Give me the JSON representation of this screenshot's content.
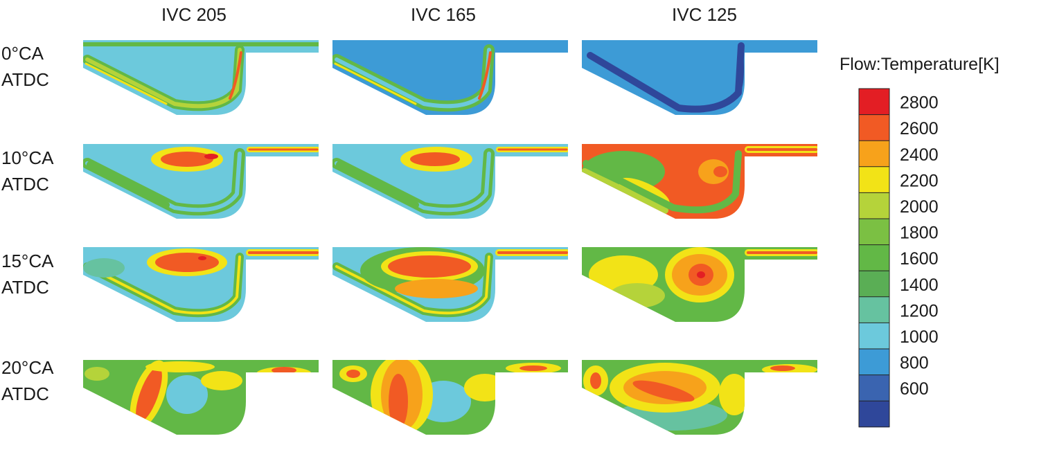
{
  "columns": [
    "IVC 205",
    "IVC 165",
    "IVC 125"
  ],
  "rows": [
    {
      "line1": "0°CA",
      "line2": "ATDC"
    },
    {
      "line1": "10°CA",
      "line2": "ATDC"
    },
    {
      "line1": "15°CA",
      "line2": "ATDC"
    },
    {
      "line1": "20°CA",
      "line2": "ATDC"
    }
  ],
  "legend": {
    "title": "Flow:Temperature[K]",
    "ticks": [
      "2800",
      "2600",
      "2400",
      "2200",
      "2000",
      "1800",
      "1600",
      "1400",
      "1200",
      "1000",
      "800",
      "600"
    ],
    "colors": [
      "#e31e24",
      "#f15a24",
      "#f7a21b",
      "#f2e317",
      "#b5d33a",
      "#7bc043",
      "#62b846",
      "#5aae55",
      "#66c2a0",
      "#6cc9dc",
      "#3d9bd6",
      "#3a64b0",
      "#2f479a"
    ]
  },
  "palette": {
    "cyan": "#6cc9dc",
    "blue": "#3d9bd6",
    "darkblue": "#2f479a",
    "green": "#62b846",
    "lime": "#b5d33a",
    "yellow": "#f2e317",
    "orange": "#f7a21b",
    "red": "#f15a24",
    "darkred": "#e31e24",
    "teal": "#66c2a0"
  }
}
